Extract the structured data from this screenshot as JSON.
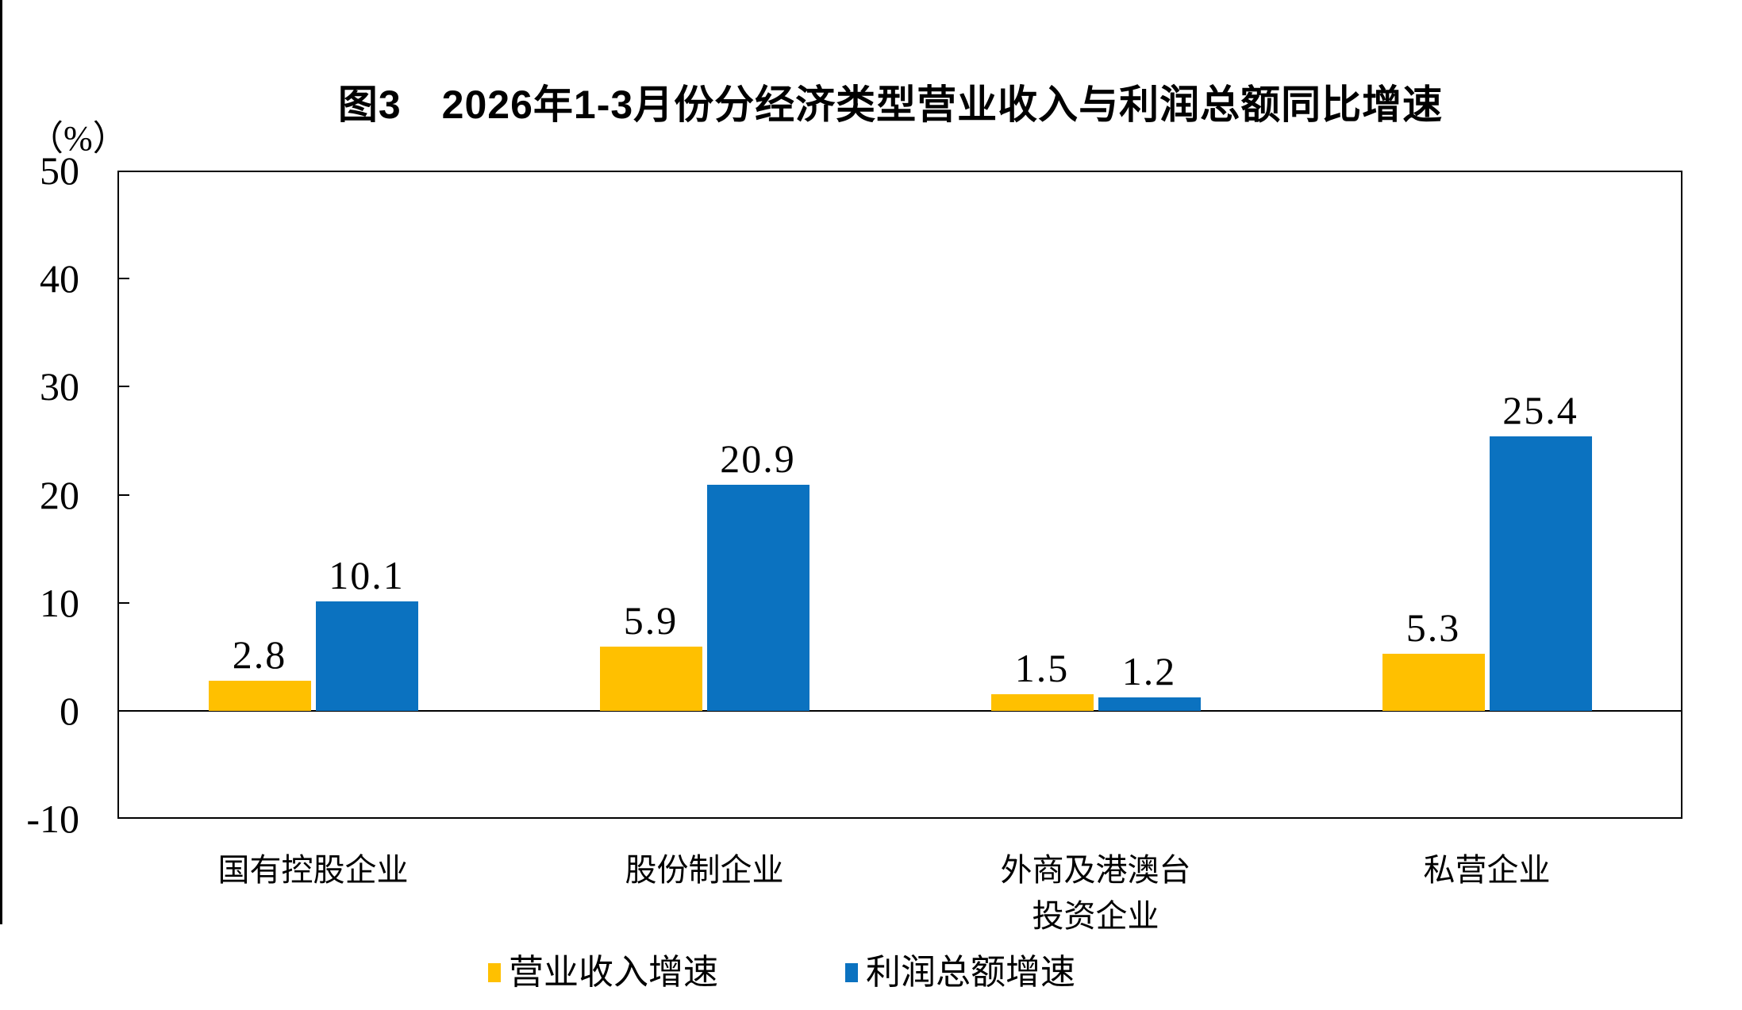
{
  "chart_data": {
    "type": "bar",
    "title": "图3　2026年1-3月份分经济类型营业收入与利润总额同比增速",
    "unit_label": "（%）",
    "categories": [
      "国有控股企业",
      "股份制企业",
      "外商及港澳台\n投资企业",
      "私营企业"
    ],
    "series": [
      {
        "name": "营业收入增速",
        "color": "#FFC000",
        "values": [
          2.8,
          5.9,
          1.5,
          5.3
        ]
      },
      {
        "name": "利润总额增速",
        "color": "#0B72C0",
        "values": [
          10.1,
          20.9,
          1.2,
          25.4
        ]
      }
    ],
    "ylim": [
      -10,
      50
    ],
    "yticks": [
      50,
      40,
      30,
      20,
      10,
      0,
      -10
    ],
    "grid": false,
    "legend_position": "bottom",
    "axis_color": "#000000",
    "text_color": "#000000"
  }
}
